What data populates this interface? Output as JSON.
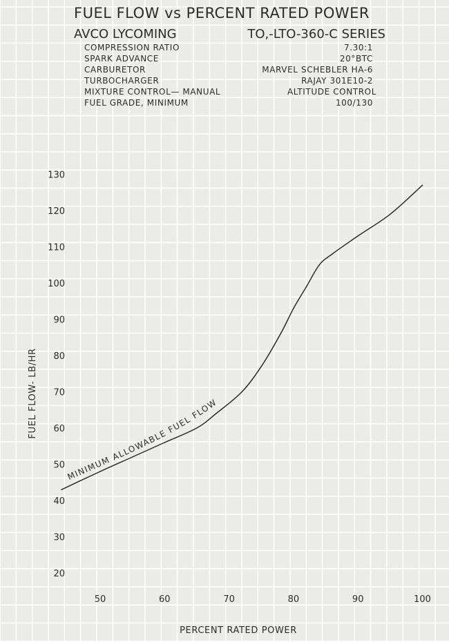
{
  "header": {
    "title": "FUEL FLOW vs PERCENT RATED POWER",
    "engine_make": "AVCO LYCOMING",
    "engine_model": "TO,-LTO-360-C SERIES"
  },
  "specs": [
    {
      "label": "COMPRESSION RATIO",
      "value": "7.30:1"
    },
    {
      "label": "SPARK ADVANCE",
      "value": "20°BTC"
    },
    {
      "label": "CARBURETOR",
      "value": "MARVEL SCHEBLER HA-6"
    },
    {
      "label": "TURBOCHARGER",
      "value": "RAJAY 301E10-2"
    },
    {
      "label": "MIXTURE CONTROL— MANUAL",
      "value": "ALTITUDE CONTROL"
    },
    {
      "label": "FUEL GRADE, MINIMUM",
      "value": "100/130"
    }
  ],
  "colors": {
    "background": "#ebebe8",
    "grid": "#ffffff",
    "ink": "#2a2a2a"
  },
  "chart_data": {
    "type": "line",
    "title": "FUEL FLOW vs PERCENT RATED POWER",
    "xlabel": "PERCENT RATED POWER",
    "ylabel": "FUEL FLOW- LB/HR",
    "xlim": [
      40,
      105
    ],
    "ylim": [
      10,
      140
    ],
    "x_ticks": [
      50,
      60,
      70,
      80,
      90,
      100
    ],
    "y_ticks": [
      20,
      30,
      40,
      50,
      60,
      70,
      80,
      90,
      100,
      110,
      120,
      130
    ],
    "grid": true,
    "series": [
      {
        "name": "MINIMUM ALLOWABLE FUEL FLOW",
        "x": [
          44,
          50,
          55,
          60,
          65,
          68,
          72,
          75,
          78,
          80,
          82,
          84,
          86,
          90,
          95,
          100
        ],
        "y": [
          43,
          48,
          52,
          56,
          60,
          64,
          70,
          77,
          86,
          93,
          99,
          105,
          108,
          113,
          119,
          127
        ]
      }
    ]
  }
}
